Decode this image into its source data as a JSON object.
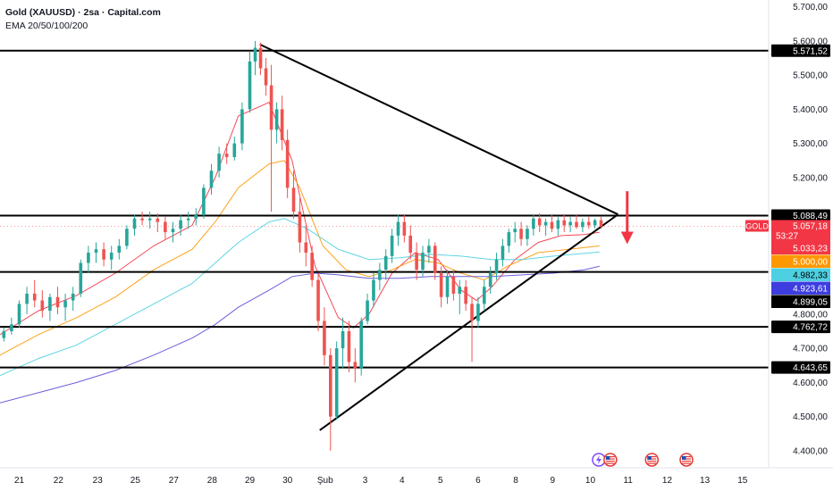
{
  "header": {
    "title": "Gold (XAUUSD) · 2sa · Capital.com",
    "indicator": "EMA 20/50/100/200"
  },
  "colors": {
    "up": "#26a69a",
    "down": "#ef5350",
    "ema20": "#f23645",
    "ema50": "#ff9800",
    "ema100": "#4dd0e1",
    "ema200": "#5b4fd6",
    "level": "#000000",
    "arrow": "#f23645"
  },
  "chart_data": {
    "type": "candlestick",
    "xlabel": "",
    "ylabel": "",
    "ylim": [
      4350,
      5720
    ],
    "xlim": [
      0,
      100
    ],
    "grid": false,
    "legend": "top-left",
    "x_ticks": [
      {
        "x": 2.5,
        "label": "21"
      },
      {
        "x": 7.6,
        "label": "22"
      },
      {
        "x": 12.7,
        "label": "23"
      },
      {
        "x": 17.6,
        "label": "25"
      },
      {
        "x": 22.6,
        "label": "27"
      },
      {
        "x": 27.6,
        "label": "28"
      },
      {
        "x": 32.5,
        "label": "29"
      },
      {
        "x": 37.4,
        "label": "30"
      },
      {
        "x": 42.3,
        "label": "Şub"
      },
      {
        "x": 47.5,
        "label": "3"
      },
      {
        "x": 52.3,
        "label": "4"
      },
      {
        "x": 57.3,
        "label": "5"
      },
      {
        "x": 62.2,
        "label": "6"
      },
      {
        "x": 67.1,
        "label": "8"
      },
      {
        "x": 71.9,
        "label": "9"
      },
      {
        "x": 76.8,
        "label": "10"
      },
      {
        "x": 81.7,
        "label": "11"
      },
      {
        "x": 86.8,
        "label": "12"
      },
      {
        "x": 91.7,
        "label": "13"
      },
      {
        "x": 96.6,
        "label": "15"
      }
    ],
    "y_ticks": [
      {
        "value": 5700,
        "label": "5.700,00"
      },
      {
        "value": 5600,
        "label": "5.600,00"
      },
      {
        "value": 5500,
        "label": "5.500,00"
      },
      {
        "value": 5400,
        "label": "5.400,00"
      },
      {
        "value": 5300,
        "label": "5.300,00"
      },
      {
        "value": 5200,
        "label": "5.200,00"
      },
      {
        "value": 4800,
        "label": "4.800,00"
      },
      {
        "value": 4700,
        "label": "4.700,00"
      },
      {
        "value": 4600,
        "label": "4.600,00"
      },
      {
        "value": 4500,
        "label": "4.500,00"
      },
      {
        "value": 4400,
        "label": "4.400,00"
      }
    ],
    "horizontal_levels": [
      {
        "value": 5571.52,
        "label": "5.571,52"
      },
      {
        "value": 5088.49,
        "label": "5.088,49"
      },
      {
        "value": 4923.61,
        "label": "4.923,61"
      },
      {
        "value": 4762.72,
        "label": "4.762,72"
      },
      {
        "value": 4643.65,
        "label": "4.643,65"
      }
    ],
    "price_tags": [
      {
        "value": 5057.18,
        "label": "5.057,18",
        "symbol": "GOLD",
        "countdown": "53:27",
        "color": "#f23645"
      },
      {
        "value": 5033.23,
        "label": "5.033,23",
        "color": "#f23645"
      },
      {
        "value": 5000.0,
        "label": "5.000,00",
        "color": "#ff9800"
      },
      {
        "value": 4982.33,
        "label": "4.982,33",
        "color": "#4dd0e1"
      },
      {
        "value": 4923.61,
        "label": "4.923,61",
        "color": "#3d3de0"
      },
      {
        "value": 4899.05,
        "label": "4.899,05",
        "color": "#000000"
      }
    ],
    "trendlines": [
      {
        "name": "upper",
        "points": [
          [
            33.8,
            5590
          ],
          [
            80.4,
            5092
          ]
        ]
      },
      {
        "name": "lower",
        "points": [
          [
            41.6,
            4460
          ],
          [
            80.4,
            5092
          ]
        ]
      }
    ],
    "arrow": {
      "x": 81.6,
      "from": 5160,
      "to": 5010
    },
    "ema": {
      "ema20": [
        [
          0,
          4740
        ],
        [
          5,
          4810
        ],
        [
          10,
          4855
        ],
        [
          15,
          4920
        ],
        [
          20,
          5000
        ],
        [
          25,
          5060
        ],
        [
          28,
          5200
        ],
        [
          31,
          5380
        ],
        [
          35,
          5420
        ],
        [
          38,
          5250
        ],
        [
          41,
          4940
        ],
        [
          44,
          4790
        ],
        [
          46,
          4760
        ],
        [
          48,
          4800
        ],
        [
          51,
          4920
        ],
        [
          54,
          4980
        ],
        [
          57,
          4960
        ],
        [
          60,
          4870
        ],
        [
          62,
          4840
        ],
        [
          64,
          4880
        ],
        [
          67,
          4960
        ],
        [
          70,
          5010
        ],
        [
          73,
          5030
        ],
        [
          76,
          5033
        ],
        [
          78,
          5040
        ]
      ],
      "ema50": [
        [
          0,
          4680
        ],
        [
          5,
          4740
        ],
        [
          10,
          4790
        ],
        [
          15,
          4850
        ],
        [
          20,
          4930
        ],
        [
          25,
          4990
        ],
        [
          28,
          5070
        ],
        [
          31,
          5170
        ],
        [
          35,
          5240
        ],
        [
          37,
          5250
        ],
        [
          39,
          5170
        ],
        [
          42,
          5000
        ],
        [
          45,
          4930
        ],
        [
          48,
          4910
        ],
        [
          51,
          4930
        ],
        [
          54,
          4960
        ],
        [
          57,
          4950
        ],
        [
          60,
          4920
        ],
        [
          63,
          4900
        ],
        [
          66,
          4940
        ],
        [
          70,
          4980
        ],
        [
          74,
          4990
        ],
        [
          78,
          5000
        ]
      ],
      "ema100": [
        [
          0,
          4620
        ],
        [
          5,
          4670
        ],
        [
          10,
          4710
        ],
        [
          15,
          4770
        ],
        [
          20,
          4830
        ],
        [
          25,
          4890
        ],
        [
          28,
          4950
        ],
        [
          31,
          5010
        ],
        [
          35,
          5070
        ],
        [
          37,
          5080
        ],
        [
          40,
          5050
        ],
        [
          44,
          4990
        ],
        [
          48,
          4960
        ],
        [
          52,
          4965
        ],
        [
          56,
          4975
        ],
        [
          60,
          4970
        ],
        [
          64,
          4960
        ],
        [
          68,
          4960
        ],
        [
          72,
          4970
        ],
        [
          78,
          4982
        ]
      ],
      "ema200": [
        [
          0,
          4540
        ],
        [
          5,
          4570
        ],
        [
          10,
          4600
        ],
        [
          15,
          4635
        ],
        [
          20,
          4680
        ],
        [
          25,
          4730
        ],
        [
          28,
          4770
        ],
        [
          31,
          4820
        ],
        [
          35,
          4870
        ],
        [
          38,
          4910
        ],
        [
          41,
          4920
        ],
        [
          44,
          4915
        ],
        [
          48,
          4905
        ],
        [
          52,
          4905
        ],
        [
          56,
          4910
        ],
        [
          60,
          4910
        ],
        [
          64,
          4910
        ],
        [
          68,
          4915
        ],
        [
          72,
          4920
        ],
        [
          76,
          4930
        ],
        [
          78,
          4940
        ]
      ]
    },
    "candles": [
      {
        "x": 0.5,
        "o": 4730,
        "h": 4760,
        "l": 4720,
        "c": 4750
      },
      {
        "x": 1.5,
        "o": 4750,
        "h": 4790,
        "l": 4740,
        "c": 4770
      },
      {
        "x": 2.5,
        "o": 4770,
        "h": 4840,
        "l": 4760,
        "c": 4830
      },
      {
        "x": 3.5,
        "o": 4830,
        "h": 4880,
        "l": 4800,
        "c": 4860
      },
      {
        "x": 4.5,
        "o": 4860,
        "h": 4900,
        "l": 4820,
        "c": 4840
      },
      {
        "x": 5.5,
        "o": 4840,
        "h": 4870,
        "l": 4790,
        "c": 4810
      },
      {
        "x": 6.5,
        "o": 4810,
        "h": 4860,
        "l": 4780,
        "c": 4850
      },
      {
        "x": 7.5,
        "o": 4850,
        "h": 4880,
        "l": 4800,
        "c": 4820
      },
      {
        "x": 8.5,
        "o": 4820,
        "h": 4860,
        "l": 4780,
        "c": 4840
      },
      {
        "x": 9.5,
        "o": 4840,
        "h": 4880,
        "l": 4810,
        "c": 4860
      },
      {
        "x": 10.5,
        "o": 4860,
        "h": 4960,
        "l": 4850,
        "c": 4950
      },
      {
        "x": 11.5,
        "o": 4950,
        "h": 5000,
        "l": 4920,
        "c": 4980
      },
      {
        "x": 12.5,
        "o": 4980,
        "h": 5010,
        "l": 4950,
        "c": 4990
      },
      {
        "x": 13.5,
        "o": 4990,
        "h": 5010,
        "l": 4940,
        "c": 4960
      },
      {
        "x": 14.5,
        "o": 4960,
        "h": 5000,
        "l": 4930,
        "c": 4980
      },
      {
        "x": 15.5,
        "o": 4980,
        "h": 5020,
        "l": 4960,
        "c": 5000
      },
      {
        "x": 16.5,
        "o": 5000,
        "h": 5060,
        "l": 4990,
        "c": 5050
      },
      {
        "x": 17.5,
        "o": 5050,
        "h": 5090,
        "l": 5030,
        "c": 5080
      },
      {
        "x": 18.5,
        "o": 5080,
        "h": 5100,
        "l": 5060,
        "c": 5075
      },
      {
        "x": 19.5,
        "o": 5075,
        "h": 5100,
        "l": 5050,
        "c": 5080
      },
      {
        "x": 20.5,
        "o": 5080,
        "h": 5095,
        "l": 5040,
        "c": 5070
      },
      {
        "x": 21.5,
        "o": 5070,
        "h": 5085,
        "l": 5020,
        "c": 5040
      },
      {
        "x": 22.5,
        "o": 5040,
        "h": 5070,
        "l": 5010,
        "c": 5050
      },
      {
        "x": 23.5,
        "o": 5050,
        "h": 5090,
        "l": 5030,
        "c": 5075
      },
      {
        "x": 24.5,
        "o": 5075,
        "h": 5100,
        "l": 5050,
        "c": 5080
      },
      {
        "x": 25.5,
        "o": 5080,
        "h": 5110,
        "l": 5060,
        "c": 5090
      },
      {
        "x": 26.5,
        "o": 5090,
        "h": 5180,
        "l": 5080,
        "c": 5170
      },
      {
        "x": 27.5,
        "o": 5170,
        "h": 5240,
        "l": 5150,
        "c": 5220
      },
      {
        "x": 28.5,
        "o": 5220,
        "h": 5290,
        "l": 5200,
        "c": 5270
      },
      {
        "x": 29.5,
        "o": 5270,
        "h": 5300,
        "l": 5240,
        "c": 5260
      },
      {
        "x": 30.5,
        "o": 5260,
        "h": 5320,
        "l": 5250,
        "c": 5300
      },
      {
        "x": 31.5,
        "o": 5300,
        "h": 5420,
        "l": 5280,
        "c": 5400
      },
      {
        "x": 32.5,
        "o": 5400,
        "h": 5570,
        "l": 5390,
        "c": 5540
      },
      {
        "x": 33.2,
        "o": 5540,
        "h": 5600,
        "l": 5500,
        "c": 5580
      },
      {
        "x": 33.9,
        "o": 5580,
        "h": 5595,
        "l": 5500,
        "c": 5520
      },
      {
        "x": 34.6,
        "o": 5520,
        "h": 5550,
        "l": 5440,
        "c": 5470
      },
      {
        "x": 35.3,
        "o": 5470,
        "h": 5530,
        "l": 5100,
        "c": 5340
      },
      {
        "x": 36.0,
        "o": 5340,
        "h": 5420,
        "l": 5300,
        "c": 5400
      },
      {
        "x": 36.7,
        "o": 5400,
        "h": 5440,
        "l": 5280,
        "c": 5310
      },
      {
        "x": 37.4,
        "o": 5310,
        "h": 5340,
        "l": 5140,
        "c": 5170
      },
      {
        "x": 38.2,
        "o": 5170,
        "h": 5220,
        "l": 5080,
        "c": 5100
      },
      {
        "x": 39.0,
        "o": 5100,
        "h": 5140,
        "l": 4980,
        "c": 5010
      },
      {
        "x": 39.8,
        "o": 5010,
        "h": 5060,
        "l": 4940,
        "c": 4980
      },
      {
        "x": 40.6,
        "o": 4980,
        "h": 5000,
        "l": 4880,
        "c": 4900
      },
      {
        "x": 41.4,
        "o": 4900,
        "h": 4920,
        "l": 4750,
        "c": 4780
      },
      {
        "x": 42.2,
        "o": 4780,
        "h": 4820,
        "l": 4650,
        "c": 4680
      },
      {
        "x": 43.0,
        "o": 4680,
        "h": 4700,
        "l": 4400,
        "c": 4500
      },
      {
        "x": 43.8,
        "o": 4500,
        "h": 4720,
        "l": 4490,
        "c": 4700
      },
      {
        "x": 44.6,
        "o": 4700,
        "h": 4790,
        "l": 4640,
        "c": 4750
      },
      {
        "x": 45.4,
        "o": 4750,
        "h": 4780,
        "l": 4630,
        "c": 4660
      },
      {
        "x": 46.2,
        "o": 4660,
        "h": 4700,
        "l": 4600,
        "c": 4640
      },
      {
        "x": 47.0,
        "o": 4640,
        "h": 4790,
        "l": 4620,
        "c": 4780
      },
      {
        "x": 47.8,
        "o": 4780,
        "h": 4860,
        "l": 4770,
        "c": 4840
      },
      {
        "x": 48.6,
        "o": 4840,
        "h": 4920,
        "l": 4820,
        "c": 4900
      },
      {
        "x": 49.4,
        "o": 4900,
        "h": 4950,
        "l": 4870,
        "c": 4930
      },
      {
        "x": 50.2,
        "o": 4930,
        "h": 4990,
        "l": 4900,
        "c": 4970
      },
      {
        "x": 51.0,
        "o": 4970,
        "h": 5050,
        "l": 4950,
        "c": 5030
      },
      {
        "x": 51.8,
        "o": 5030,
        "h": 5090,
        "l": 5000,
        "c": 5070
      },
      {
        "x": 52.6,
        "o": 5070,
        "h": 5090,
        "l": 5010,
        "c": 5030
      },
      {
        "x": 53.4,
        "o": 5030,
        "h": 5060,
        "l": 4960,
        "c": 4980
      },
      {
        "x": 54.2,
        "o": 4980,
        "h": 5010,
        "l": 4900,
        "c": 4930
      },
      {
        "x": 55.0,
        "o": 4930,
        "h": 5000,
        "l": 4910,
        "c": 4980
      },
      {
        "x": 55.8,
        "o": 4980,
        "h": 5020,
        "l": 4950,
        "c": 5000
      },
      {
        "x": 56.6,
        "o": 5000,
        "h": 5010,
        "l": 4900,
        "c": 4920
      },
      {
        "x": 57.4,
        "o": 4920,
        "h": 4940,
        "l": 4820,
        "c": 4850
      },
      {
        "x": 58.2,
        "o": 4850,
        "h": 4930,
        "l": 4830,
        "c": 4910
      },
      {
        "x": 59.0,
        "o": 4910,
        "h": 4930,
        "l": 4840,
        "c": 4860
      },
      {
        "x": 59.8,
        "o": 4860,
        "h": 4900,
        "l": 4800,
        "c": 4880
      },
      {
        "x": 60.6,
        "o": 4880,
        "h": 4900,
        "l": 4810,
        "c": 4830
      },
      {
        "x": 61.4,
        "o": 4830,
        "h": 4850,
        "l": 4660,
        "c": 4780
      },
      {
        "x": 62.2,
        "o": 4780,
        "h": 4850,
        "l": 4760,
        "c": 4830
      },
      {
        "x": 63.0,
        "o": 4830,
        "h": 4900,
        "l": 4810,
        "c": 4880
      },
      {
        "x": 63.8,
        "o": 4880,
        "h": 4940,
        "l": 4860,
        "c": 4920
      },
      {
        "x": 64.6,
        "o": 4920,
        "h": 4980,
        "l": 4900,
        "c": 4960
      },
      {
        "x": 65.4,
        "o": 4960,
        "h": 5020,
        "l": 4940,
        "c": 5000
      },
      {
        "x": 66.2,
        "o": 5000,
        "h": 5050,
        "l": 4980,
        "c": 5040
      },
      {
        "x": 67.0,
        "o": 5040,
        "h": 5070,
        "l": 5010,
        "c": 5050
      },
      {
        "x": 67.8,
        "o": 5050,
        "h": 5070,
        "l": 5000,
        "c": 5020
      },
      {
        "x": 68.6,
        "o": 5020,
        "h": 5060,
        "l": 5000,
        "c": 5050
      },
      {
        "x": 69.4,
        "o": 5050,
        "h": 5090,
        "l": 5030,
        "c": 5080
      },
      {
        "x": 70.2,
        "o": 5080,
        "h": 5095,
        "l": 5040,
        "c": 5060
      },
      {
        "x": 71.0,
        "o": 5060,
        "h": 5080,
        "l": 5030,
        "c": 5070
      },
      {
        "x": 71.8,
        "o": 5070,
        "h": 5090,
        "l": 5040,
        "c": 5050
      },
      {
        "x": 72.6,
        "o": 5050,
        "h": 5085,
        "l": 5030,
        "c": 5075
      },
      {
        "x": 73.4,
        "o": 5075,
        "h": 5090,
        "l": 5040,
        "c": 5060
      },
      {
        "x": 74.2,
        "o": 5060,
        "h": 5085,
        "l": 5040,
        "c": 5070
      },
      {
        "x": 75.0,
        "o": 5070,
        "h": 5090,
        "l": 5050,
        "c": 5055
      },
      {
        "x": 75.8,
        "o": 5055,
        "h": 5080,
        "l": 5040,
        "c": 5070
      },
      {
        "x": 76.6,
        "o": 5070,
        "h": 5085,
        "l": 5050,
        "c": 5060
      },
      {
        "x": 77.4,
        "o": 5060,
        "h": 5080,
        "l": 5050,
        "c": 5075
      },
      {
        "x": 78.2,
        "o": 5075,
        "h": 5085,
        "l": 5050,
        "c": 5057
      }
    ],
    "event_markers": [
      {
        "x": 77.9,
        "kind": "lightning"
      },
      {
        "x": 79.4,
        "kind": "us-flag"
      },
      {
        "x": 84.8,
        "kind": "us-flag"
      },
      {
        "x": 89.3,
        "kind": "us-flag"
      }
    ]
  }
}
